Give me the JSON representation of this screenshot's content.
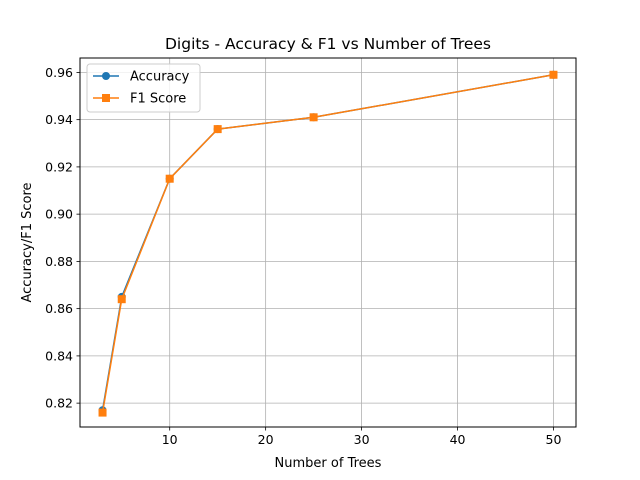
{
  "chart_data": {
    "type": "line",
    "title": "Digits - Accuracy & F1 vs Number of Trees",
    "xlabel": "Number of Trees",
    "ylabel": "Accuracy/F1 Score",
    "x": [
      3,
      5,
      10,
      15,
      25,
      50
    ],
    "series": [
      {
        "name": "Accuracy",
        "values": [
          0.817,
          0.865,
          0.915,
          0.936,
          0.941,
          0.959
        ],
        "color": "#1f77b4",
        "marker": "circle"
      },
      {
        "name": "F1 Score",
        "values": [
          0.816,
          0.864,
          0.915,
          0.936,
          0.941,
          0.959
        ],
        "color": "#ff7f0e",
        "marker": "square"
      }
    ],
    "xlim": [
      0.65,
      52.35
    ],
    "ylim": [
      0.8099,
      0.9661
    ],
    "xticks": [
      10,
      20,
      30,
      40,
      50
    ],
    "yticks": [
      0.82,
      0.84,
      0.86,
      0.88,
      0.9,
      0.92,
      0.94,
      0.96
    ],
    "yticklabels": [
      "0.82",
      "0.84",
      "0.86",
      "0.88",
      "0.90",
      "0.92",
      "0.94",
      "0.96"
    ],
    "grid": true,
    "legend_position": "top-left"
  }
}
